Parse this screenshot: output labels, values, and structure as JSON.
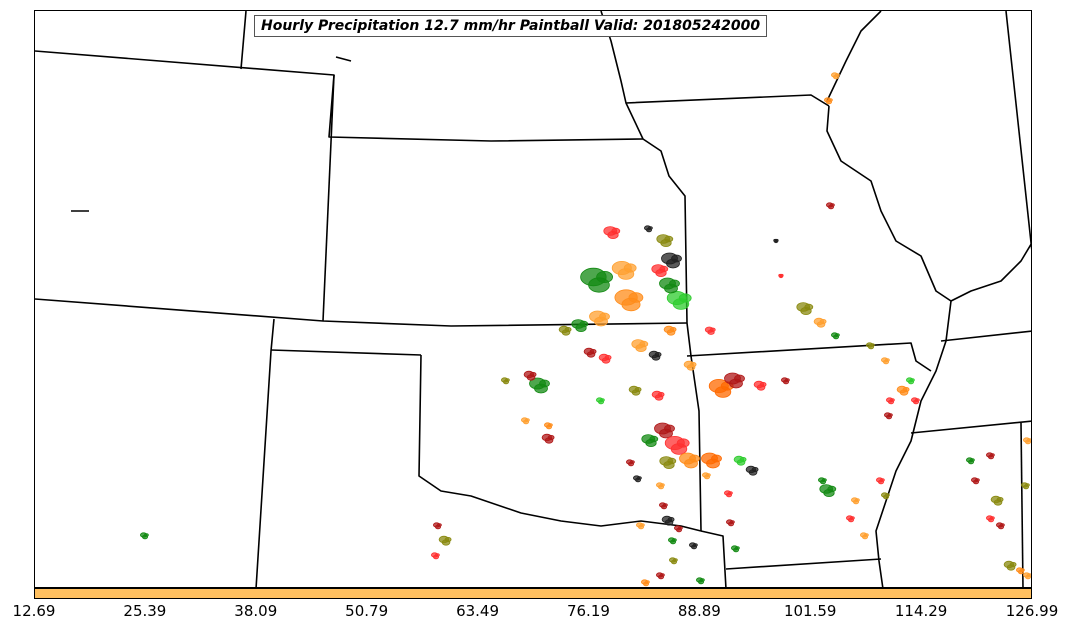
{
  "title": "Hourly Precipitation 12.7 mm/hr Paintball Valid: 201805242000",
  "colorbar": {
    "color": "#ffc060",
    "ticks": [
      "12.69",
      "25.39",
      "38.09",
      "50.79",
      "63.49",
      "76.19",
      "88.89",
      "101.59",
      "114.29",
      "126.99"
    ]
  },
  "member_colors": [
    "#222222",
    "#b01818",
    "#ff3030",
    "#ff8c1a",
    "#ffa030",
    "#2ecc2e",
    "#138a13",
    "#8a8a10",
    "#ff6a00"
  ]
}
